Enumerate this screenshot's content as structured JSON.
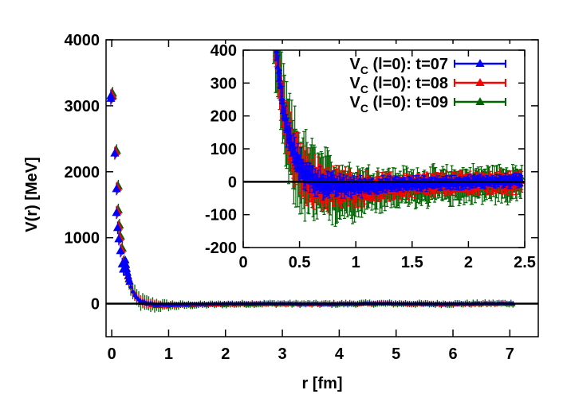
{
  "chart_data": [
    {
      "id": "main",
      "type": "scatter",
      "xlabel": "r [fm]",
      "ylabel": "V(r) [MeV]",
      "xlim": [
        -0.1,
        7.5
      ],
      "ylim": [
        -500,
        4000
      ],
      "xticks": [
        0,
        1,
        2,
        3,
        4,
        5,
        6,
        7
      ],
      "yticks": [
        0,
        1000,
        2000,
        3000,
        4000
      ],
      "xtick_labels": [
        "0",
        "1",
        "2",
        "3",
        "4",
        "5",
        "6",
        "7"
      ],
      "ytick_labels": [
        "0",
        "1000",
        "2000",
        "3000",
        "4000"
      ],
      "zero_line": true,
      "near_origin_points": [
        {
          "x": 0.0,
          "y": 3170
        },
        {
          "x": 0.0,
          "y": 3130
        },
        {
          "x": 0.07,
          "y": 2300
        },
        {
          "x": 0.1,
          "y": 1760
        },
        {
          "x": 0.1,
          "y": 1400
        },
        {
          "x": 0.12,
          "y": 1170
        },
        {
          "x": 0.14,
          "y": 1000
        },
        {
          "x": 0.17,
          "y": 820
        },
        {
          "x": 0.2,
          "y": 620
        },
        {
          "x": 0.22,
          "y": 540
        }
      ]
    },
    {
      "id": "inset",
      "type": "scatter",
      "xlim": [
        0,
        2.5
      ],
      "ylim": [
        -200,
        400
      ],
      "xticks": [
        0,
        0.5,
        1,
        1.5,
        2,
        2.5
      ],
      "yticks": [
        -200,
        -100,
        0,
        100,
        200,
        300,
        400
      ],
      "xtick_labels": [
        "0",
        "0.5",
        "1",
        "1.5",
        "2",
        "2.5"
      ],
      "ytick_labels": [
        "-200",
        "-100",
        "0",
        "100",
        "200",
        "300",
        "400"
      ],
      "zero_line": true,
      "legend_position": "top-right"
    }
  ],
  "series": [
    {
      "name": "t=07",
      "label_main": "V",
      "label_sub": "C",
      "label_rest": " (l=0): t=07",
      "color": "#0000ff",
      "marker": "triangle",
      "t": 7,
      "err_scale": 1.0,
      "offset": 0
    },
    {
      "name": "t=08",
      "label_main": "V",
      "label_sub": "C",
      "label_rest": " (l=0): t=08",
      "color": "#ff0000",
      "marker": "triangle",
      "t": 8,
      "err_scale": 1.7,
      "offset": -6
    },
    {
      "name": "t=09",
      "label_main": "V",
      "label_sub": "C",
      "label_rest": " (l=0): t=09",
      "color": "#006400",
      "marker": "triangle",
      "t": 9,
      "err_scale": 2.7,
      "offset": -12
    }
  ],
  "potential_model": {
    "A": 6200,
    "m": 9.3,
    "tail_amplitude": 12,
    "r_cut": 0.26
  }
}
